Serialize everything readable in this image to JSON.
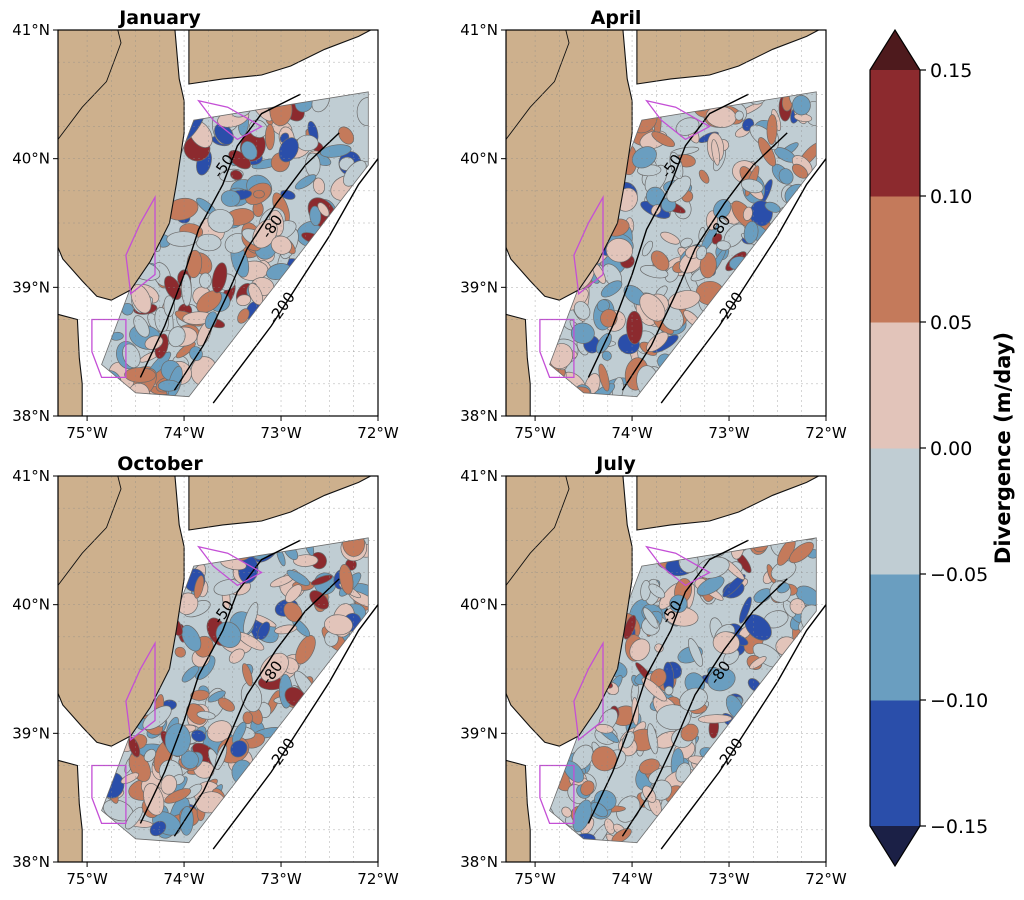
{
  "figure": {
    "panels": [
      {
        "title": "January",
        "seed": 11
      },
      {
        "title": "April",
        "seed": 23
      },
      {
        "title": "October",
        "seed": 37
      },
      {
        "title": "July",
        "seed": 53
      }
    ],
    "lat_ticks": [
      "41°N",
      "40°N",
      "39°N",
      "38°N"
    ],
    "lon_ticks": [
      "75°W",
      "74°W",
      "73°W",
      "72°W"
    ],
    "isobaths": [
      "-50",
      "-80",
      "-200"
    ],
    "colors": {
      "land": "#cdb08d",
      "coast": "#111111",
      "wea_outline": "#c44fd6",
      "contour_line": "#6b6b6b",
      "isobath": "#000000"
    }
  },
  "colorbar": {
    "label": "Divergence (m/day)",
    "ticks": [
      "0.15",
      "0.10",
      "0.05",
      "0.00",
      "−0.05",
      "−0.10",
      "−0.15"
    ],
    "levels": [
      {
        "min": -0.15,
        "max": -0.1,
        "color": "#2a4eaa"
      },
      {
        "min": -0.1,
        "max": -0.05,
        "color": "#6a9ec0"
      },
      {
        "min": -0.05,
        "max": 0.0,
        "color": "#c0cdd3"
      },
      {
        "min": 0.0,
        "max": 0.05,
        "color": "#e2c4ba"
      },
      {
        "min": 0.05,
        "max": 0.1,
        "color": "#c47a5b"
      },
      {
        "min": 0.1,
        "max": 0.15,
        "color": "#8c2a2e"
      }
    ],
    "extend_low_color": "#1b2046",
    "extend_high_color": "#4e1a1d"
  }
}
